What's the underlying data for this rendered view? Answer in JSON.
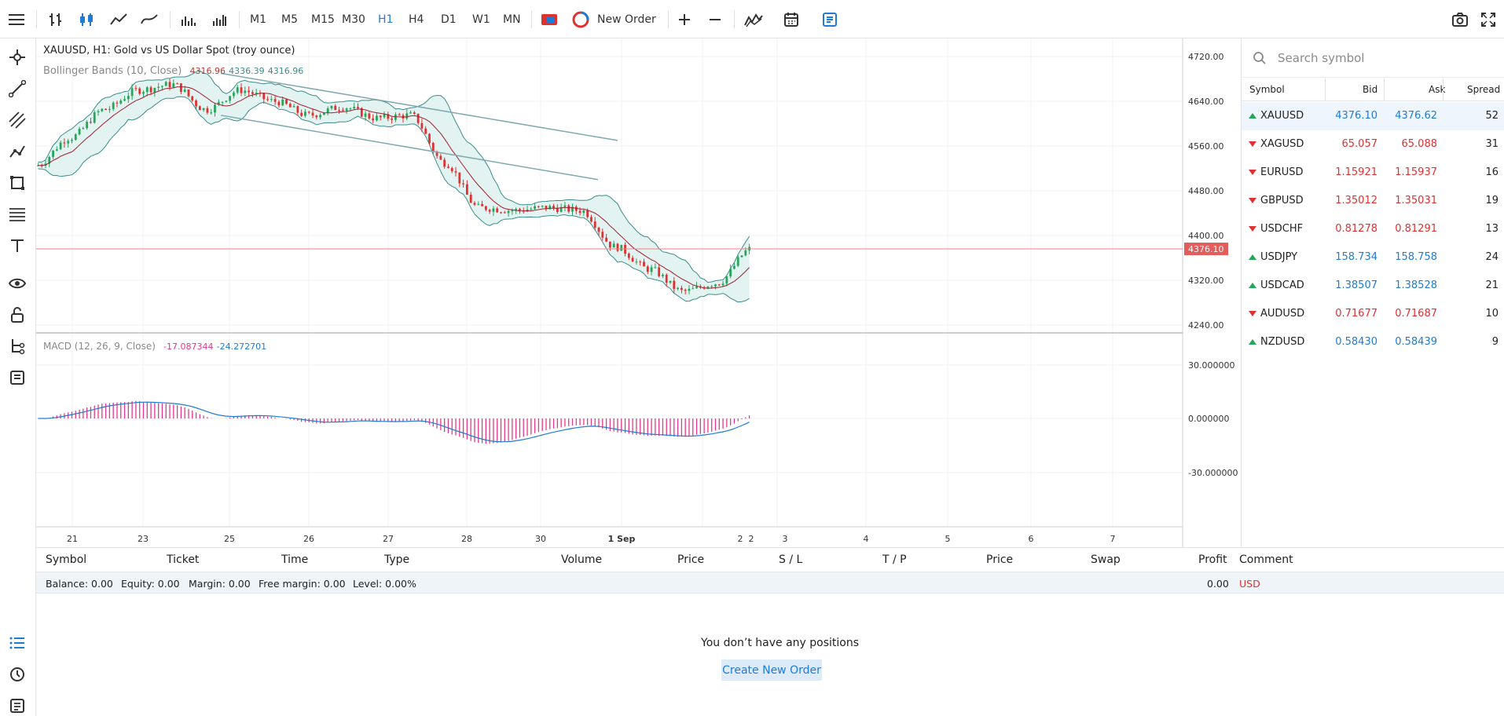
{
  "toolbar": {
    "timeframes": [
      "M1",
      "M5",
      "M15",
      "M30",
      "H1",
      "H4",
      "D1",
      "W1",
      "MN"
    ],
    "active_timeframe": "H1",
    "new_order_label": "New Order"
  },
  "chart": {
    "title": "XAUUSD, H1: Gold vs US Dollar Spot (troy ounce)",
    "bb_label": "Bollinger Bands (10, Close)",
    "bb_values": [
      "4316.96",
      "4336.39",
      "4316.96"
    ],
    "macd_label": "MACD (12, 26, 9, Close)",
    "macd_values": [
      "-17.087344",
      "-24.272701"
    ],
    "current_price": "4376.10",
    "price_axis": [
      "4720.00",
      "4640.00",
      "4560.00",
      "4480.00",
      "4400.00",
      "4320.00",
      "4240.00"
    ],
    "macd_axis": [
      "30.000000",
      "0.000000",
      "-30.000000"
    ],
    "time_axis": [
      "21",
      "23",
      "25",
      "26",
      "27",
      "28",
      "30",
      "1 Sep",
      "2",
      "2",
      "3",
      "4",
      "5",
      "6",
      "7"
    ]
  },
  "chart_data": {
    "type": "candlestick",
    "symbol": "XAUUSD",
    "timeframe": "H1",
    "ylim": [
      4220,
      4740
    ],
    "close_series_approx": [
      {
        "x": "21",
        "y": 4525
      },
      {
        "x": "22",
        "y": 4575
      },
      {
        "x": "23",
        "y": 4625
      },
      {
        "x": "24",
        "y": 4660
      },
      {
        "x": "25",
        "y": 4670
      },
      {
        "x": "25.5",
        "y": 4625
      },
      {
        "x": "26",
        "y": 4660
      },
      {
        "x": "26.5",
        "y": 4640
      },
      {
        "x": "27",
        "y": 4615
      },
      {
        "x": "27.5",
        "y": 4630
      },
      {
        "x": "28",
        "y": 4610
      },
      {
        "x": "28.5",
        "y": 4615
      },
      {
        "x": "29",
        "y": 4530
      },
      {
        "x": "29.5",
        "y": 4450
      },
      {
        "x": "30",
        "y": 4445
      },
      {
        "x": "30.5",
        "y": 4450
      },
      {
        "x": "31",
        "y": 4445
      },
      {
        "x": "31.5",
        "y": 4380
      },
      {
        "x": "1 Sep",
        "y": 4340
      },
      {
        "x": "1.5",
        "y": 4300
      },
      {
        "x": "2",
        "y": 4315
      },
      {
        "x": "2.5",
        "y": 4376
      }
    ],
    "macd_ylim": [
      -40,
      40
    ]
  },
  "watchlist": {
    "search_placeholder": "Search symbol",
    "headers": [
      "Symbol",
      "Bid",
      "Ask",
      "Spread"
    ],
    "rows": [
      {
        "symbol": "XAUUSD",
        "bid": "4376.10",
        "ask": "4376.62",
        "spread": "52",
        "dir": "up"
      },
      {
        "symbol": "XAGUSD",
        "bid": "65.057",
        "ask": "65.088",
        "spread": "31",
        "dir": "down"
      },
      {
        "symbol": "EURUSD",
        "bid": "1.15921",
        "ask": "1.15937",
        "spread": "16",
        "dir": "down"
      },
      {
        "symbol": "GBPUSD",
        "bid": "1.35012",
        "ask": "1.35031",
        "spread": "19",
        "dir": "down"
      },
      {
        "symbol": "USDCHF",
        "bid": "0.81278",
        "ask": "0.81291",
        "spread": "13",
        "dir": "down"
      },
      {
        "symbol": "USDJPY",
        "bid": "158.734",
        "ask": "158.758",
        "spread": "24",
        "dir": "up"
      },
      {
        "symbol": "USDCAD",
        "bid": "1.38507",
        "ask": "1.38528",
        "spread": "21",
        "dir": "up"
      },
      {
        "symbol": "AUDUSD",
        "bid": "0.71677",
        "ask": "0.71687",
        "spread": "10",
        "dir": "down"
      },
      {
        "symbol": "NZDUSD",
        "bid": "0.58430",
        "ask": "0.58439",
        "spread": "9",
        "dir": "up"
      }
    ]
  },
  "positions": {
    "headers": [
      "Symbol",
      "Ticket",
      "Time",
      "Type",
      "Volume",
      "Price",
      "S / L",
      "T / P",
      "Price",
      "Swap",
      "Profit",
      "Comment"
    ],
    "balance": "Balance: 0.00",
    "equity": "Equity: 0.00",
    "margin": "Margin: 0.00",
    "free_margin": "Free margin: 0.00",
    "level": "Level: 0.00%",
    "profit": "0.00",
    "currency": "USD",
    "empty_message": "You don’t have any positions",
    "create_button": "Create New Order"
  },
  "colors": {
    "accent": "#1e7bd6",
    "up": "#26a65b",
    "down": "#e03131",
    "bb": "#3a8d8d",
    "macd_hist": "#e4388c"
  }
}
